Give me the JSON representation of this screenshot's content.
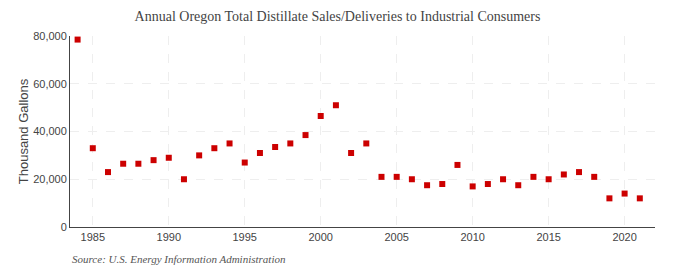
{
  "chart_data": {
    "type": "scatter",
    "title": "Annual Oregon Total Distillate Sales/Deliveries to Industrial Consumers",
    "ylabel": "Thousand Gallons",
    "annotations": [
      "Source: U.S. Energy Information Administration"
    ],
    "x": [
      1984,
      1985,
      1986,
      1987,
      1988,
      1989,
      1990,
      1991,
      1992,
      1993,
      1994,
      1995,
      1996,
      1997,
      1998,
      1999,
      2000,
      2001,
      2002,
      2003,
      2004,
      2005,
      2006,
      2007,
      2008,
      2009,
      2010,
      2011,
      2012,
      2013,
      2014,
      2015,
      2016,
      2017,
      2018,
      2019,
      2020,
      2021
    ],
    "values": [
      78500,
      33000,
      23000,
      26500,
      26500,
      28000,
      29000,
      20000,
      30000,
      33000,
      35000,
      27000,
      31000,
      33500,
      35000,
      38500,
      46500,
      51000,
      31000,
      35000,
      21000,
      21000,
      20000,
      17500,
      18000,
      26000,
      17000,
      18000,
      20000,
      17500,
      21000,
      20000,
      22000,
      23000,
      21000,
      12000,
      14000,
      12000
    ],
    "color": "#cc0000",
    "marker": "square",
    "xlim": [
      1983.5,
      2022
    ],
    "ylim": [
      0,
      80000
    ],
    "xticks": [
      1985,
      1990,
      1995,
      2000,
      2005,
      2010,
      2015,
      2020
    ],
    "yticks": [
      0,
      {
        "value": 20000,
        "label": "20,000"
      },
      {
        "value": 40000,
        "label": "40,000"
      },
      {
        "value": 60000,
        "label": "60,000"
      },
      {
        "value": 80000,
        "label": "80,000"
      }
    ],
    "grid": true
  }
}
